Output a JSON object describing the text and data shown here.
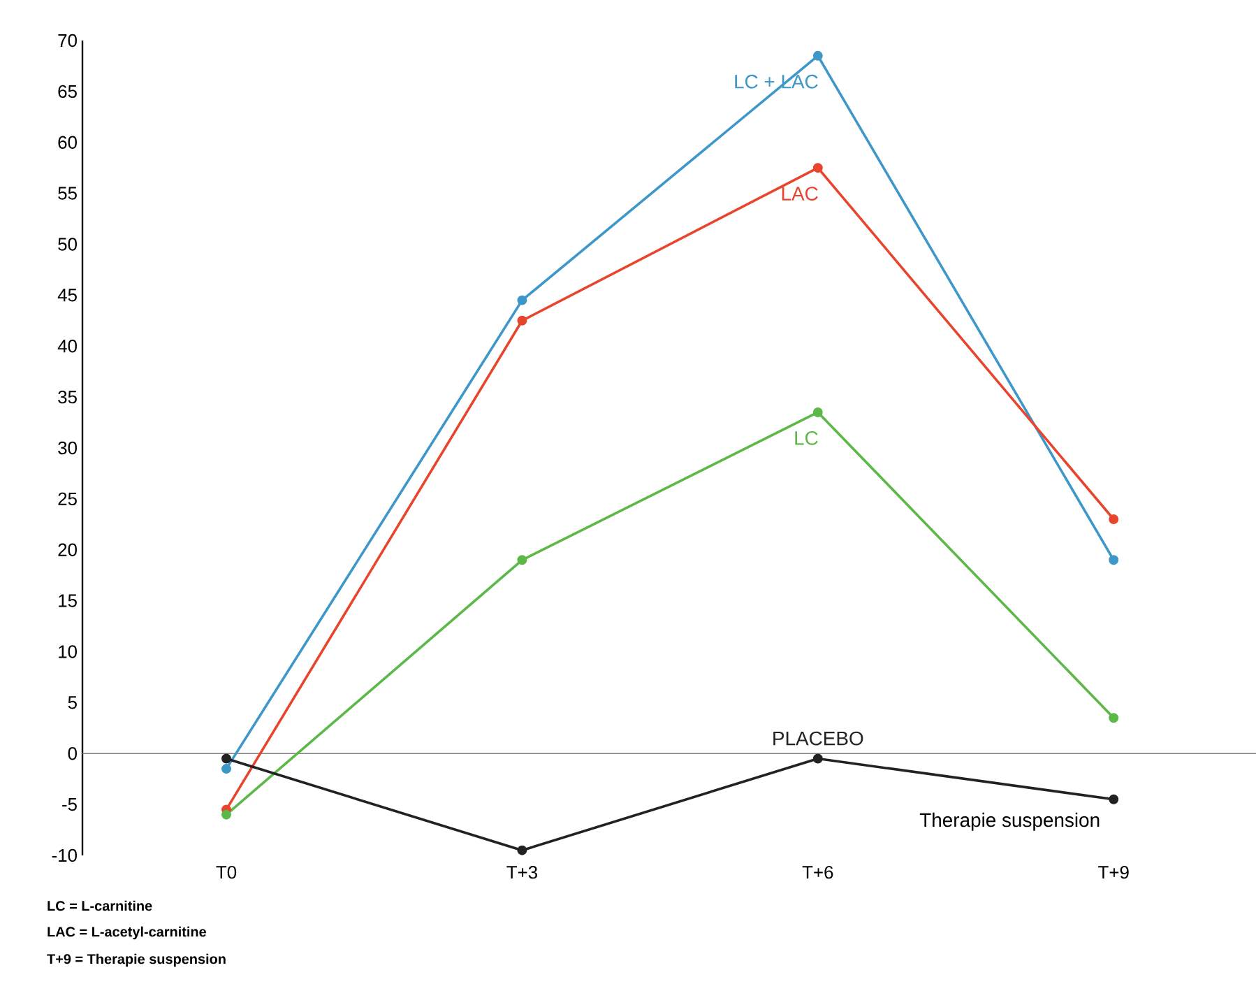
{
  "chart_data": {
    "type": "line",
    "categories": [
      "T0",
      "T+3",
      "T+6",
      "T+9"
    ],
    "series": [
      {
        "name": "LC + LAC",
        "color": "#3d97c8",
        "values": [
          -1.5,
          44.5,
          68.5,
          19
        ]
      },
      {
        "name": "LAC",
        "color": "#e8452e",
        "values": [
          -5.5,
          42.5,
          57.5,
          23
        ]
      },
      {
        "name": "LC",
        "color": "#5cb848",
        "values": [
          -6,
          19,
          33.5,
          3.5
        ]
      },
      {
        "name": "PLACEBO",
        "color": "#222222",
        "values": [
          -0.5,
          -9.5,
          -0.5,
          -4.5
        ]
      }
    ],
    "ylim": [
      -10,
      70
    ],
    "yticks": [
      -10,
      -5,
      0,
      5,
      10,
      15,
      20,
      25,
      30,
      35,
      40,
      45,
      50,
      55,
      60,
      65,
      70
    ],
    "grid": false,
    "marker": "circle",
    "line_style": "solid",
    "ref_lines": [
      {
        "axis": "y",
        "value": 0,
        "color": "#808080"
      }
    ],
    "annotations": [
      {
        "text": "Therapie suspension",
        "x": "T+9",
        "y": -4.5
      },
      "LC = L-carnitine",
      "LAC = L-acetyl-carnitine",
      "T+9 = Therapie suspension"
    ]
  }
}
